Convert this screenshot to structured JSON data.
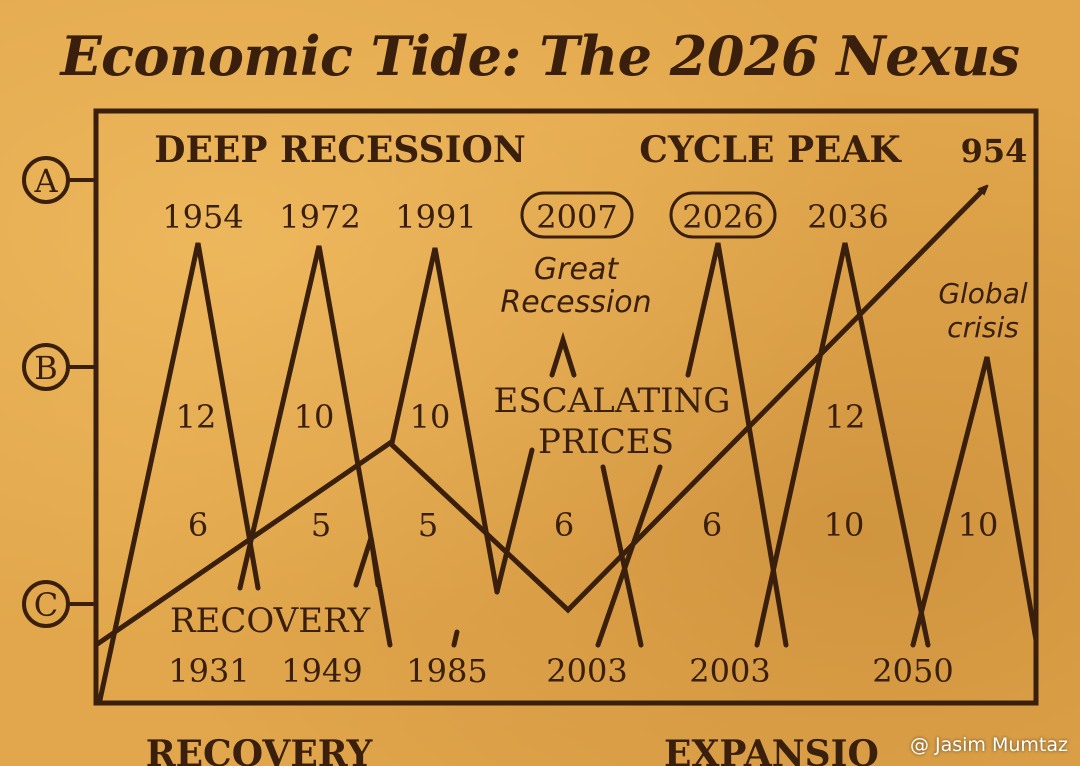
{
  "title": "Economic Tide: The 2026 Nexus",
  "row_markers": [
    "A",
    "B",
    "C"
  ],
  "headings": {
    "deep_recession": "DEEP RECESSION",
    "cycle_peak": "CYCLE PEAK",
    "escalating_prices_line1": "ESCALATING",
    "escalating_prices_line2": "PRICES",
    "recovery_inner": "RECOVERY",
    "great_recession_line1": "Great",
    "great_recession_line2": "Recession",
    "global_crisis_line1": "Global",
    "global_crisis_line2": "crisis",
    "bottom_left": "RECOVERY",
    "bottom_right": "EXPANSIO"
  },
  "top_years": [
    "1954",
    "1972",
    "1991",
    "2007",
    "2026",
    "2036"
  ],
  "top_right_value": "954",
  "interval_upper": [
    "12",
    "10",
    "10",
    "12"
  ],
  "interval_lower": [
    "6",
    "5",
    "5",
    "6",
    "6",
    "10",
    "10"
  ],
  "bottom_years": [
    "1931",
    "1949",
    "1985",
    "2003",
    "2003",
    "2050"
  ],
  "watermark": "@ Jasim Mumtaz",
  "colors": {
    "ink": "#3a200c",
    "paper": "#e2a74c"
  }
}
